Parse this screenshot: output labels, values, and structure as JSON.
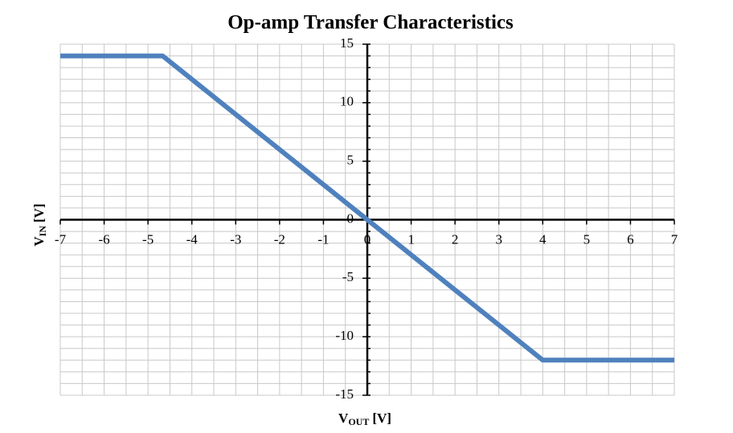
{
  "chart_data": {
    "type": "line",
    "title": "Op-amp Transfer Characteristics",
    "xlabel": {
      "main": "V",
      "sub": "OUT",
      "unit": "[V]"
    },
    "ylabel": {
      "main": "V",
      "sub": "IN",
      "unit": "[V]"
    },
    "x": [
      -7,
      -4.667,
      4,
      7
    ],
    "series": [
      {
        "color": "#4f81bd",
        "values": [
          14,
          14,
          -12,
          -12
        ]
      }
    ],
    "xlim": [
      -7,
      7
    ],
    "ylim": [
      -15,
      15
    ],
    "xticks": [
      -7,
      -6,
      -5,
      -4,
      -3,
      -2,
      -1,
      0,
      1,
      2,
      3,
      4,
      5,
      6,
      7
    ],
    "yticks": [
      -15,
      -10,
      -5,
      0,
      5,
      10,
      15
    ],
    "minor_step": {
      "x": 0.5,
      "y": 1
    },
    "grid": true
  }
}
